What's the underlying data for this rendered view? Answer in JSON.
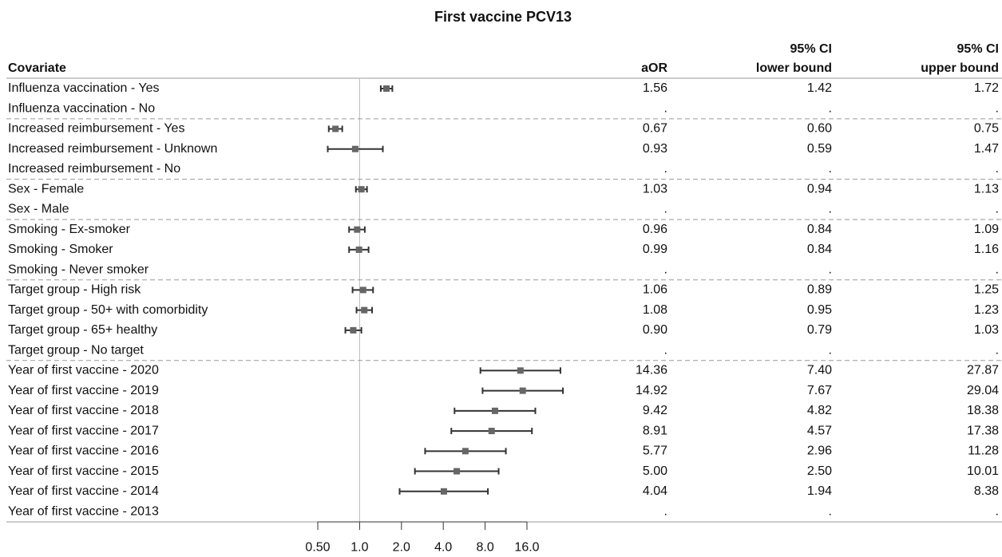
{
  "chart_data": {
    "type": "forest",
    "title": "First vaccine PCV13",
    "row_header": "Covariate",
    "columns": {
      "aor": [
        "aOR"
      ],
      "lower": [
        "95% CI",
        "lower bound"
      ],
      "upper": [
        "95% CI",
        "upper bound"
      ]
    },
    "log_scale": true,
    "xlim": [
      0.5,
      16
    ],
    "reference": 1,
    "xticks": [
      {
        "value": 0.5,
        "label": "0.50"
      },
      {
        "value": 1,
        "label": "1.0"
      },
      {
        "value": 2,
        "label": "2.0"
      },
      {
        "value": 4,
        "label": "4.0"
      },
      {
        "value": 8,
        "label": "8.0"
      },
      {
        "value": 16,
        "label": "16.0"
      }
    ],
    "color": "#666666",
    "groups": [
      {
        "categories": [
          "Influenza vaccination - Yes",
          "Influenza vaccination - No"
        ],
        "aor": [
          1.56,
          null
        ],
        "aor_labels": [
          "1.56",
          "."
        ],
        "lower": [
          1.42,
          null
        ],
        "lower_labels": [
          "1.42",
          "."
        ],
        "upper": [
          1.72,
          null
        ],
        "upper_labels": [
          "1.72",
          "."
        ]
      },
      {
        "categories": [
          "Increased reimbursement - Yes",
          "Increased reimbursement - Unknown",
          "Increased reimbursement - No"
        ],
        "aor": [
          0.67,
          0.93,
          null
        ],
        "aor_labels": [
          "0.67",
          "0.93",
          "."
        ],
        "lower": [
          0.6,
          0.59,
          null
        ],
        "lower_labels": [
          "0.60",
          "0.59",
          "."
        ],
        "upper": [
          0.75,
          1.47,
          null
        ],
        "upper_labels": [
          "0.75",
          "1.47",
          "."
        ]
      },
      {
        "categories": [
          "Sex - Female",
          "Sex - Male"
        ],
        "aor": [
          1.03,
          null
        ],
        "aor_labels": [
          "1.03",
          "."
        ],
        "lower": [
          0.94,
          null
        ],
        "lower_labels": [
          "0.94",
          "."
        ],
        "upper": [
          1.13,
          null
        ],
        "upper_labels": [
          "1.13",
          "."
        ]
      },
      {
        "categories": [
          "Smoking - Ex-smoker",
          "Smoking - Smoker",
          "Smoking - Never smoker"
        ],
        "aor": [
          0.96,
          0.99,
          null
        ],
        "aor_labels": [
          "0.96",
          "0.99",
          "."
        ],
        "lower": [
          0.84,
          0.84,
          null
        ],
        "lower_labels": [
          "0.84",
          "0.84",
          "."
        ],
        "upper": [
          1.09,
          1.16,
          null
        ],
        "upper_labels": [
          "1.09",
          "1.16",
          "."
        ]
      },
      {
        "categories": [
          "Target group - High risk",
          "Target group - 50+ with comorbidity",
          "Target group - 65+ healthy",
          "Target group - No target"
        ],
        "aor": [
          1.06,
          1.08,
          0.9,
          null
        ],
        "aor_labels": [
          "1.06",
          "1.08",
          "0.90",
          "."
        ],
        "lower": [
          0.89,
          0.95,
          0.79,
          null
        ],
        "lower_labels": [
          "0.89",
          "0.95",
          "0.79",
          "."
        ],
        "upper": [
          1.25,
          1.23,
          1.03,
          null
        ],
        "upper_labels": [
          "1.25",
          "1.23",
          "1.03",
          "."
        ]
      },
      {
        "categories": [
          "Year of first vaccine - 2020",
          "Year of first vaccine - 2019",
          "Year of first vaccine - 2018",
          "Year of first vaccine - 2017",
          "Year of first vaccine - 2016",
          "Year of first vaccine - 2015",
          "Year of first vaccine - 2014",
          "Year of first vaccine - 2013"
        ],
        "aor": [
          14.36,
          14.92,
          9.42,
          8.91,
          5.77,
          5.0,
          4.04,
          null
        ],
        "aor_labels": [
          "14.36",
          "14.92",
          "9.42",
          "8.91",
          "5.77",
          "5.00",
          "4.04",
          "."
        ],
        "lower": [
          7.4,
          7.67,
          4.82,
          4.57,
          2.96,
          2.5,
          1.94,
          null
        ],
        "lower_labels": [
          "7.40",
          "7.67",
          "4.82",
          "4.57",
          "2.96",
          "2.50",
          "1.94",
          "."
        ],
        "upper": [
          27.87,
          29.04,
          18.38,
          17.38,
          11.28,
          10.01,
          8.38,
          null
        ],
        "upper_labels": [
          "27.87",
          "29.04",
          "18.38",
          "17.38",
          "11.28",
          "10.01",
          "8.38",
          "."
        ]
      }
    ]
  }
}
